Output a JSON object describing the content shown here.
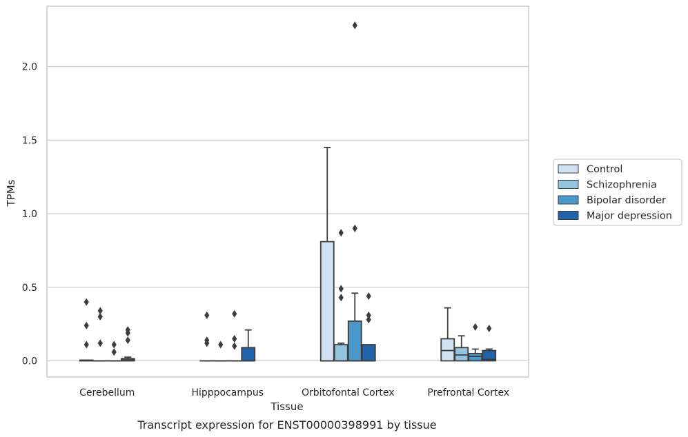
{
  "chart_data": {
    "type": "box",
    "caption": "Transcript expression for ENST00000398991 by tissue",
    "xlabel": "Tissue",
    "ylabel": "TPMs",
    "ylim": [
      -0.11,
      2.41
    ],
    "yticks": [
      0.0,
      0.5,
      1.0,
      1.5,
      2.0
    ],
    "ytick_labels": [
      "0.0",
      "0.5",
      "1.0",
      "1.5",
      "2.0"
    ],
    "grid": "horizontal",
    "legend_position": "right",
    "categories": [
      "Cerebellum",
      "Hipppocampus",
      "Orbitofontal Cortex",
      "Prefrontal Cortex"
    ],
    "series": [
      {
        "name": "Control",
        "color": "#d0e1f2",
        "boxes": [
          {
            "q1": 0.0,
            "median": 0.0,
            "q3": 0.005,
            "whisker_low": 0.0,
            "whisker_high": 0.005,
            "outliers": [
              0.11,
              0.24,
              0.4
            ]
          },
          {
            "q1": 0.0,
            "median": 0.0,
            "q3": 0.0,
            "whisker_low": 0.0,
            "whisker_high": 0.0,
            "outliers": [
              0.12,
              0.14,
              0.31
            ]
          },
          {
            "q1": 0.0,
            "median": 0.0,
            "q3": 0.81,
            "whisker_low": 0.0,
            "whisker_high": 1.45,
            "outliers": []
          },
          {
            "q1": 0.0,
            "median": 0.07,
            "q3": 0.15,
            "whisker_low": 0.0,
            "whisker_high": 0.36,
            "outliers": []
          }
        ]
      },
      {
        "name": "Schizophrenia",
        "color": "#94c4df",
        "boxes": [
          {
            "q1": 0.0,
            "median": 0.0,
            "q3": 0.0,
            "whisker_low": 0.0,
            "whisker_high": 0.0,
            "outliers": [
              0.12,
              0.3,
              0.34
            ]
          },
          {
            "q1": 0.0,
            "median": 0.0,
            "q3": 0.0,
            "whisker_low": 0.0,
            "whisker_high": 0.0,
            "outliers": [
              0.11
            ]
          },
          {
            "q1": 0.0,
            "median": 0.0,
            "q3": 0.11,
            "whisker_low": 0.0,
            "whisker_high": 0.12,
            "outliers": [
              0.43,
              0.49,
              0.87
            ]
          },
          {
            "q1": 0.0,
            "median": 0.04,
            "q3": 0.09,
            "whisker_low": 0.0,
            "whisker_high": 0.17,
            "outliers": []
          }
        ]
      },
      {
        "name": "Bipolar disorder",
        "color": "#4a98c9",
        "boxes": [
          {
            "q1": 0.0,
            "median": 0.0,
            "q3": 0.0,
            "whisker_low": 0.0,
            "whisker_high": 0.0,
            "outliers": [
              0.06,
              0.11
            ]
          },
          {
            "q1": 0.0,
            "median": 0.0,
            "q3": 0.0,
            "whisker_low": 0.0,
            "whisker_high": 0.0,
            "outliers": [
              0.1,
              0.15,
              0.32
            ]
          },
          {
            "q1": 0.0,
            "median": 0.0,
            "q3": 0.27,
            "whisker_low": 0.0,
            "whisker_high": 0.46,
            "outliers": [
              0.9,
              2.28
            ]
          },
          {
            "q1": 0.0,
            "median": 0.03,
            "q3": 0.05,
            "whisker_low": 0.0,
            "whisker_high": 0.08,
            "outliers": [
              0.23
            ]
          }
        ]
      },
      {
        "name": "Major depression",
        "color": "#2163aa",
        "boxes": [
          {
            "q1": 0.0,
            "median": 0.005,
            "q3": 0.015,
            "whisker_low": 0.0,
            "whisker_high": 0.025,
            "outliers": [
              0.14,
              0.19,
              0.21
            ]
          },
          {
            "q1": 0.0,
            "median": 0.0,
            "q3": 0.09,
            "whisker_low": 0.0,
            "whisker_high": 0.21,
            "outliers": []
          },
          {
            "q1": 0.0,
            "median": 0.0,
            "q3": 0.11,
            "whisker_low": 0.0,
            "whisker_high": 0.11,
            "outliers": [
              0.28,
              0.31,
              0.44
            ]
          },
          {
            "q1": 0.0,
            "median": 0.01,
            "q3": 0.07,
            "whisker_low": 0.0,
            "whisker_high": 0.08,
            "outliers": [
              0.22
            ]
          }
        ]
      }
    ]
  },
  "colors": {
    "box_edge": "#3d3d3d",
    "grid": "#cccccc",
    "axes_edge": "#cccccc",
    "background": "#ffffff"
  }
}
